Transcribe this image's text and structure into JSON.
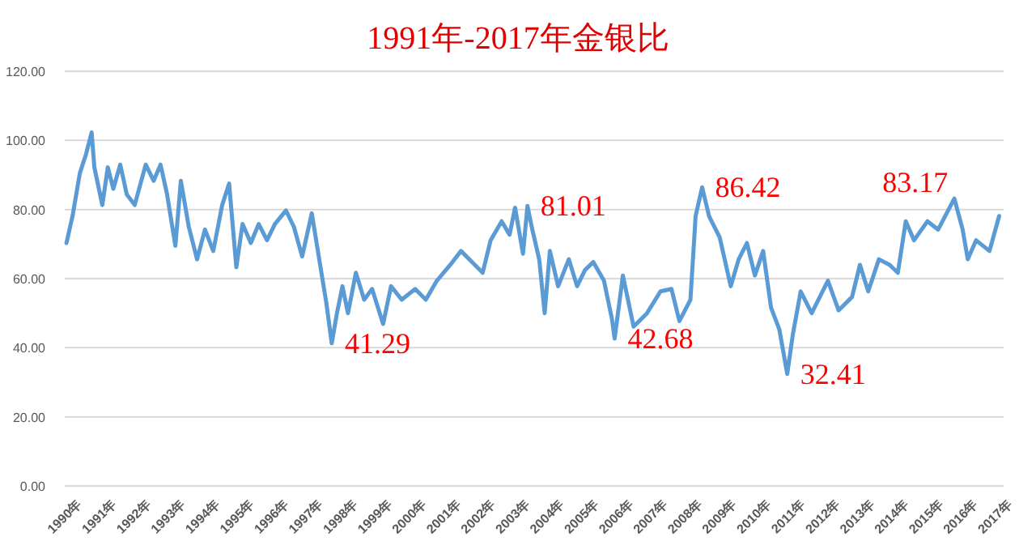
{
  "chart_data": {
    "type": "line",
    "title": "1991年-2017年金银比",
    "x": [
      1990.05,
      1990.23,
      1990.44,
      1990.62,
      1990.78,
      1990.86,
      1991.09,
      1991.25,
      1991.41,
      1991.61,
      1991.8,
      1992.03,
      1992.35,
      1992.58,
      1992.78,
      1992.97,
      1993.21,
      1993.37,
      1993.6,
      1993.84,
      1994.07,
      1994.31,
      1994.57,
      1994.77,
      1994.98,
      1995.16,
      1995.4,
      1995.63,
      1995.87,
      1996.1,
      1996.42,
      1996.65,
      1996.89,
      1997.17,
      1997.36,
      1997.59,
      1997.75,
      1997.9,
      1998.06,
      1998.22,
      1998.45,
      1998.69,
      1998.92,
      1999.24,
      1999.47,
      1999.78,
      2000.17,
      2000.48,
      2000.8,
      2001.19,
      2001.5,
      2001.82,
      2002.13,
      2002.36,
      2002.68,
      2002.91,
      2003.07,
      2003.3,
      2003.43,
      2003.57,
      2003.77,
      2003.93,
      2004.08,
      2004.32,
      2004.63,
      2004.87,
      2005.1,
      2005.34,
      2005.65,
      2005.88,
      2005.96,
      2006.2,
      2006.51,
      2006.9,
      2007.29,
      2007.61,
      2007.84,
      2008.16,
      2008.31,
      2008.5,
      2008.7,
      2009.01,
      2009.33,
      2009.56,
      2009.8,
      2010.03,
      2010.27,
      2010.5,
      2010.74,
      2010.97,
      2011.13,
      2011.36,
      2011.68,
      2012.15,
      2012.46,
      2012.85,
      2013.08,
      2013.32,
      2013.63,
      2013.94,
      2014.18,
      2014.41,
      2014.65,
      2015.04,
      2015.35,
      2015.82,
      2016.06,
      2016.21,
      2016.45,
      2016.84,
      2017.12
    ],
    "series": [
      {
        "color": "#5b9bd5",
        "values": [
          70.3,
          78.3,
          90.6,
          96.1,
          102.3,
          92.2,
          81.3,
          92.2,
          86,
          93,
          84.4,
          81.3,
          93,
          88.3,
          93,
          84.4,
          69.5,
          88.3,
          75,
          65.6,
          74.2,
          68,
          81.3,
          87.5,
          63.3,
          75.8,
          70.3,
          75.8,
          71.1,
          75.8,
          79.7,
          75,
          66.4,
          78.9,
          67.2,
          53.1,
          41.29,
          50,
          57.8,
          50,
          61.7,
          53.9,
          57,
          46.9,
          57.8,
          53.9,
          57,
          53.9,
          59.4,
          64,
          68,
          64.8,
          61.7,
          71.1,
          76.6,
          72.7,
          80.5,
          67.2,
          81.01,
          74.2,
          65.6,
          50,
          68,
          57.8,
          65.6,
          57.8,
          62.5,
          64.8,
          59.4,
          48.4,
          42.68,
          60.9,
          46.1,
          50,
          56.3,
          57,
          47.7,
          53.9,
          78.1,
          86.42,
          78.1,
          71.9,
          57.8,
          65.6,
          70.3,
          60.9,
          68,
          51.6,
          45.3,
          32.41,
          43.7,
          56.3,
          50,
          59.4,
          50.8,
          54.7,
          64,
          56.3,
          65.6,
          64,
          61.7,
          76.6,
          71.1,
          76.6,
          74.2,
          83.17,
          74.2,
          65.6,
          71.1,
          68,
          78.1
        ]
      }
    ],
    "xlim": [
      1990,
      2017.25
    ],
    "xticks": [
      {
        "value": 1990,
        "label": "1990年"
      },
      {
        "value": 1991,
        "label": "1991年"
      },
      {
        "value": 1992,
        "label": "1992年"
      },
      {
        "value": 1993,
        "label": "1993年"
      },
      {
        "value": 1994,
        "label": "1994年"
      },
      {
        "value": 1995,
        "label": "1995年"
      },
      {
        "value": 1996,
        "label": "1996年"
      },
      {
        "value": 1997,
        "label": "1997年"
      },
      {
        "value": 1998,
        "label": "1998年"
      },
      {
        "value": 1999,
        "label": "1999年"
      },
      {
        "value": 2000,
        "label": "2000年"
      },
      {
        "value": 2001,
        "label": "2001年"
      },
      {
        "value": 2002,
        "label": "2002年"
      },
      {
        "value": 2003,
        "label": "2003年"
      },
      {
        "value": 2004,
        "label": "2004年"
      },
      {
        "value": 2005,
        "label": "2005年"
      },
      {
        "value": 2006,
        "label": "2006年"
      },
      {
        "value": 2007,
        "label": "2007年"
      },
      {
        "value": 2008,
        "label": "2008年"
      },
      {
        "value": 2009,
        "label": "2009年"
      },
      {
        "value": 2010,
        "label": "2010年"
      },
      {
        "value": 2011,
        "label": "2011年"
      },
      {
        "value": 2012,
        "label": "2012年"
      },
      {
        "value": 2013,
        "label": "2013年"
      },
      {
        "value": 2014,
        "label": "2014年"
      },
      {
        "value": 2015,
        "label": "2015年"
      },
      {
        "value": 2016,
        "label": "2016年"
      },
      {
        "value": 2017,
        "label": "2017年"
      }
    ],
    "ylim": [
      0,
      120
    ],
    "yticks": [
      {
        "value": 0,
        "label": "0.00"
      },
      {
        "value": 20,
        "label": "20.00"
      },
      {
        "value": 40,
        "label": "40.00"
      },
      {
        "value": 60,
        "label": "60.00"
      },
      {
        "value": 80,
        "label": "80.00"
      },
      {
        "value": 100,
        "label": "100.00"
      },
      {
        "value": 120,
        "label": "120.00"
      }
    ],
    "grid": "y",
    "annotations": [
      {
        "text": "41.29",
        "x": 1997.75,
        "y": 41.29
      },
      {
        "text": "81.01",
        "x": 2003.43,
        "y": 81.01
      },
      {
        "text": "42.68",
        "x": 2005.96,
        "y": 42.68
      },
      {
        "text": "86.42",
        "x": 2008.5,
        "y": 86.42
      },
      {
        "text": "32.41",
        "x": 2010.97,
        "y": 32.41
      },
      {
        "text": "83.17",
        "x": 2015.82,
        "y": 83.17
      }
    ]
  }
}
